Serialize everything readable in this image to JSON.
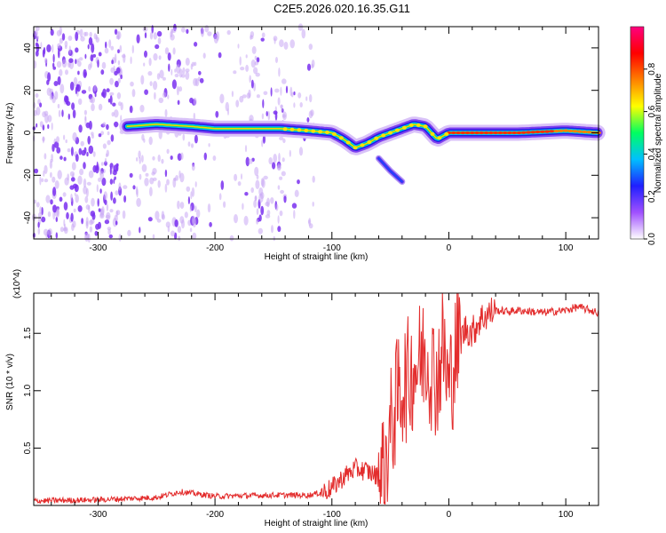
{
  "page": {
    "title": "C2E5.2026.020.16.35.G11"
  },
  "chart_data": [
    {
      "type": "heatmap",
      "title": "C2E5.2026.020.16.35.G11",
      "xlabel": "Height of straight line (km)",
      "ylabel": "Frequency (Hz)",
      "xlim": [
        -355,
        128
      ],
      "ylim": [
        -50,
        50
      ],
      "x_ticks": [
        -300,
        -200,
        -100,
        0,
        100
      ],
      "y_ticks": [
        -40,
        -20,
        0,
        20,
        40
      ],
      "colorbar": {
        "label": "Normalized spectral amplitude",
        "range": [
          0,
          1
        ],
        "ticks": [
          "0.0",
          "0.2",
          "0.4",
          "0.6",
          "0.8"
        ],
        "colors": [
          "#ffffff",
          "#a050ff",
          "#2020ff",
          "#00c0ff",
          "#00ff60",
          "#ffff00",
          "#ff8000",
          "#ff0000",
          "#ff0080"
        ]
      },
      "ridge": {
        "x": [
          -275,
          -250,
          -220,
          -200,
          -170,
          -145,
          -120,
          -100,
          -90,
          -80,
          -70,
          -60,
          -50,
          -40,
          -30,
          -20,
          -10,
          0,
          20,
          60,
          100,
          128
        ],
        "freq": [
          3,
          4,
          3,
          2,
          2,
          2,
          1,
          0,
          -3,
          -7,
          -5,
          -2,
          0,
          2,
          4,
          3,
          -3,
          0,
          0,
          0,
          1,
          0
        ]
      },
      "branch": {
        "x": [
          -60,
          -50,
          -40
        ],
        "freq": [
          -12,
          -18,
          -23
        ]
      }
    },
    {
      "type": "line",
      "xlabel": "Height of straight line (km)",
      "ylabel": "SNR (10 * v/v)",
      "y_multiplier": "(x10^4)",
      "xlim": [
        -355,
        128
      ],
      "ylim": [
        0,
        18500
      ],
      "x_ticks": [
        -300,
        -200,
        -100,
        0,
        100
      ],
      "y_ticks": [
        5000,
        10000,
        15000
      ],
      "y_tick_labels": [
        "0.5",
        "1.0",
        "1.5"
      ],
      "color": "#e32d2d",
      "series": [
        {
          "x": [
            -355,
            -300,
            -250,
            -230,
            -200,
            -150,
            -120,
            -110,
            -100,
            -90,
            -80,
            -70,
            -60,
            -55,
            -50,
            -45,
            -40,
            -35,
            -30,
            -25,
            -20,
            -15,
            -10,
            -5,
            0,
            5,
            10,
            15,
            20,
            25,
            30,
            40,
            50,
            60,
            80,
            100,
            110,
            128
          ],
          "values": [
            400,
            500,
            700,
            1200,
            800,
            900,
            900,
            1100,
            1500,
            2500,
            3200,
            3000,
            2500,
            3500,
            6500,
            9000,
            10500,
            11000,
            12000,
            12500,
            13500,
            12000,
            11000,
            14000,
            10000,
            13000,
            14500,
            15500,
            15000,
            16000,
            16500,
            17000,
            16900,
            17000,
            16800,
            17000,
            17300,
            16800
          ]
        }
      ]
    }
  ]
}
